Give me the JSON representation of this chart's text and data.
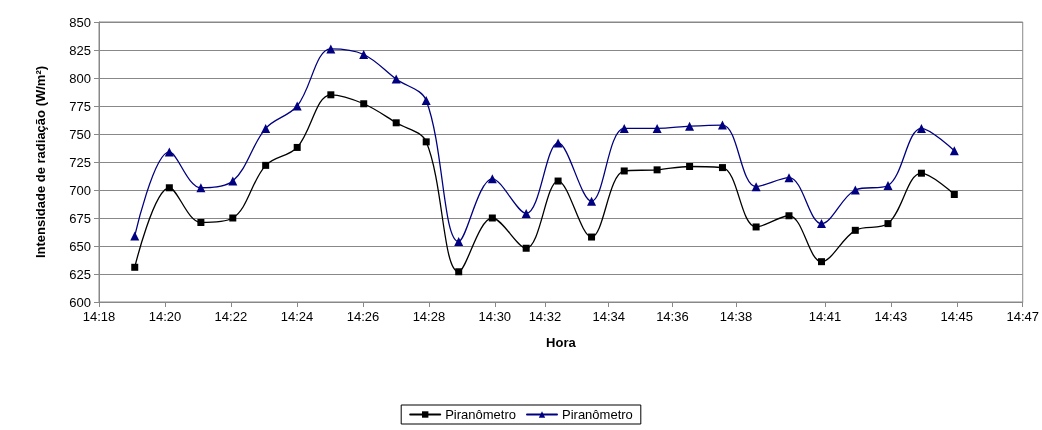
{
  "chart_data": {
    "type": "line",
    "xlabel": "Hora",
    "ylabel": "Intensidade de radiação (W/m²)",
    "x": [
      14.3187,
      14.3368,
      14.3533,
      14.37,
      14.3872,
      14.4037,
      14.4213,
      14.4385,
      14.4555,
      14.4712,
      14.4882,
      14.5058,
      14.5235,
      14.5402,
      14.5577,
      14.5748,
      14.592,
      14.609,
      14.6262,
      14.6438,
      14.661,
      14.678,
      14.6957,
      14.7128,
      14.7303,
      14.7475
    ],
    "series": [
      {
        "name": "Piranômetro",
        "color": "#000000",
        "marker": "square",
        "values": [
          631,
          702,
          671,
          675,
          722,
          738,
          785,
          777,
          760,
          743,
          627,
          675,
          648,
          708,
          658,
          717,
          718,
          721,
          720,
          667,
          677,
          636,
          664,
          670,
          715,
          696
        ]
      },
      {
        "name": "Piranômetro",
        "color": "#000080",
        "marker": "triangle",
        "values": [
          659,
          734,
          702,
          708,
          755,
          775,
          826,
          821,
          799,
          780,
          654,
          710,
          679,
          742,
          690,
          755,
          755,
          757,
          758,
          703,
          711,
          670,
          700,
          704,
          755,
          735
        ]
      }
    ],
    "xlim": [
      14.3,
      14.7833
    ],
    "xticks": [
      {
        "value": 14.3,
        "label": "14:18"
      },
      {
        "value": 14.3345,
        "label": "14:20"
      },
      {
        "value": 14.369,
        "label": "14:22"
      },
      {
        "value": 14.4036,
        "label": "14:24"
      },
      {
        "value": 14.4381,
        "label": "14:26"
      },
      {
        "value": 14.4726,
        "label": "14:28"
      },
      {
        "value": 14.5071,
        "label": "14:30"
      },
      {
        "value": 14.5333,
        "label": "14:32"
      },
      {
        "value": 14.5667,
        "label": "14:34"
      },
      {
        "value": 14.6,
        "label": "14:36"
      },
      {
        "value": 14.6333,
        "label": "14:38"
      },
      {
        "value": 14.6798,
        "label": "14:41"
      },
      {
        "value": 14.7143,
        "label": "14:43"
      },
      {
        "value": 14.7488,
        "label": "14:45"
      },
      {
        "value": 14.7833,
        "label": "14:47"
      }
    ],
    "ylim": [
      600,
      850
    ],
    "yticks": [
      600,
      625,
      650,
      675,
      700,
      725,
      750,
      775,
      800,
      825,
      850
    ],
    "grid": "y",
    "legend": "bottom",
    "line_style": "solid"
  }
}
